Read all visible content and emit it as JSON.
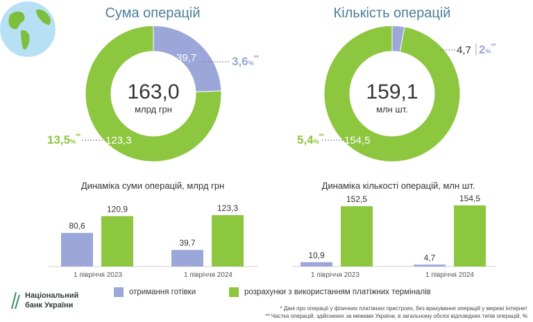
{
  "colors": {
    "cash": "#9aa7d8",
    "terminal": "#8dc63f",
    "title": "#4a7f95",
    "text": "#333333"
  },
  "donuts": [
    {
      "title": "Сума операцій",
      "total": "163,0",
      "unit": "млрд грн",
      "segments": [
        {
          "value": 39.7,
          "label": "39,7",
          "pct": "3,6",
          "pct_suffix": "%",
          "stars": "**"
        },
        {
          "value": 123.3,
          "label": "123,3",
          "pct": "13,5",
          "pct_suffix": "%",
          "stars": "**"
        }
      ]
    },
    {
      "title": "Кількість операцій",
      "total": "159,1",
      "unit": "млн шт.",
      "segments": [
        {
          "value": 4.7,
          "label": "4,7",
          "pct": "2",
          "pct_suffix": "%",
          "stars": "**"
        },
        {
          "value": 154.5,
          "label": "154,5",
          "pct": "5,4",
          "pct_suffix": "%",
          "stars": "**"
        }
      ]
    }
  ],
  "chart_data": [
    {
      "type": "pie",
      "title": "Сума операцій",
      "categories": [
        "отримання готівки",
        "розрахунки з використанням платіжних терміналів"
      ],
      "values": [
        39.7,
        123.3
      ],
      "total": 163.0,
      "unit": "млрд грн",
      "shares_pct": [
        3.6,
        13.5
      ]
    },
    {
      "type": "pie",
      "title": "Кількість операцій",
      "categories": [
        "отримання готівки",
        "розрахунки з використанням платіжних терміналів"
      ],
      "values": [
        4.7,
        154.5
      ],
      "total": 159.1,
      "unit": "млн шт.",
      "shares_pct": [
        2,
        5.4
      ]
    },
    {
      "type": "bar",
      "title": "Динаміка суми операцій, млрд грн",
      "categories": [
        "1 півріччя 2023",
        "1 півріччя 2024"
      ],
      "series": [
        {
          "name": "отримання готівки",
          "values": [
            80.6,
            39.7
          ],
          "labels": [
            "80,6",
            "39,7"
          ]
        },
        {
          "name": "розрахунки з використанням платіжних терміналів",
          "values": [
            120.9,
            123.3
          ],
          "labels": [
            "120,9",
            "123,3"
          ]
        }
      ]
    },
    {
      "type": "bar",
      "title": "Динаміка кількості операцій, млн шт.",
      "categories": [
        "1 півріччя 2023",
        "1 півріччя 2024"
      ],
      "series": [
        {
          "name": "отримання готівки",
          "values": [
            10.9,
            4.7
          ],
          "labels": [
            "10,9",
            "4,7"
          ]
        },
        {
          "name": "розрахунки з використанням платіжних терміналів",
          "values": [
            152.5,
            154.5
          ],
          "labels": [
            "152,5",
            "154,5"
          ]
        }
      ]
    }
  ],
  "legend": {
    "cash": "отримання готівки",
    "terminal": "розрахунки з використанням платіжних терміналів"
  },
  "logo": {
    "line1": "Національний",
    "line2": "банк України"
  },
  "footnotes": {
    "note1": "* Дані про операції у фізичних платіжних пристроях, без врахування операцій у мережі Інтернет",
    "note2": "** Частка операцій, здійснених за межами України, в загальному обсязі відповідних типів операцій, %"
  }
}
